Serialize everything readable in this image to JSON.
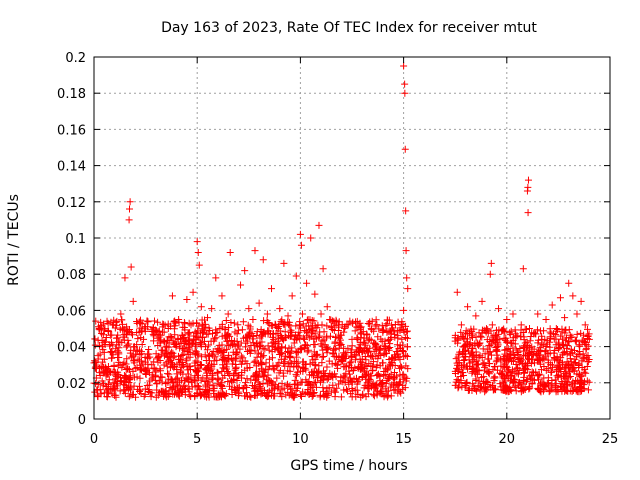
{
  "chart_data": {
    "type": "scatter",
    "title": "Day 163 of 2023, Rate Of TEC Index for receiver mtut",
    "xlabel": "GPS time / hours",
    "ylabel": "ROTI / TECUs",
    "xlim": [
      0,
      25
    ],
    "ylim": [
      0,
      0.2
    ],
    "x_ticks": [
      0,
      5,
      10,
      15,
      20,
      25
    ],
    "y_ticks": [
      0,
      0.02,
      0.04,
      0.06,
      0.08,
      0.1,
      0.12,
      0.14,
      0.16,
      0.18,
      0.2
    ],
    "grid": true,
    "marker": "plus",
    "marker_color": "#ff0000",
    "points": [
      [
        0.0,
        0.031
      ],
      [
        0.1,
        0.028
      ],
      [
        0.2,
        0.035
      ],
      [
        0.3,
        0.024
      ],
      [
        0.4,
        0.04
      ],
      [
        0.5,
        0.033
      ],
      [
        0.6,
        0.045
      ],
      [
        0.7,
        0.029
      ],
      [
        0.8,
        0.037
      ],
      [
        0.9,
        0.052
      ],
      [
        1.0,
        0.026
      ],
      [
        1.1,
        0.041
      ],
      [
        1.2,
        0.034
      ],
      [
        1.3,
        0.058
      ],
      [
        1.4,
        0.03
      ],
      [
        1.5,
        0.078
      ],
      [
        1.6,
        0.022
      ],
      [
        1.7,
        0.11
      ],
      [
        1.72,
        0.116
      ],
      [
        1.75,
        0.12
      ],
      [
        1.8,
        0.084
      ],
      [
        1.9,
        0.065
      ],
      [
        2.0,
        0.028
      ],
      [
        2.1,
        0.038
      ],
      [
        2.2,
        0.018
      ],
      [
        2.3,
        0.032
      ],
      [
        2.4,
        0.044
      ],
      [
        2.5,
        0.025
      ],
      [
        2.6,
        0.036
      ],
      [
        2.7,
        0.021
      ],
      [
        2.8,
        0.03
      ],
      [
        2.9,
        0.046
      ],
      [
        3.0,
        0.027
      ],
      [
        3.1,
        0.034
      ],
      [
        3.2,
        0.042
      ],
      [
        3.3,
        0.023
      ],
      [
        3.4,
        0.048
      ],
      [
        3.5,
        0.031
      ],
      [
        3.6,
        0.05
      ],
      [
        3.7,
        0.036
      ],
      [
        3.8,
        0.068
      ],
      [
        3.9,
        0.029
      ],
      [
        4.0,
        0.041
      ],
      [
        4.1,
        0.055
      ],
      [
        4.2,
        0.033
      ],
      [
        4.3,
        0.046
      ],
      [
        4.4,
        0.038
      ],
      [
        4.5,
        0.066
      ],
      [
        4.6,
        0.042
      ],
      [
        4.7,
        0.052
      ],
      [
        4.8,
        0.07
      ],
      [
        4.9,
        0.044
      ],
      [
        5.0,
        0.098
      ],
      [
        5.05,
        0.092
      ],
      [
        5.1,
        0.085
      ],
      [
        5.2,
        0.062
      ],
      [
        5.3,
        0.048
      ],
      [
        5.4,
        0.04
      ],
      [
        5.5,
        0.056
      ],
      [
        5.6,
        0.035
      ],
      [
        5.7,
        0.061
      ],
      [
        5.8,
        0.043
      ],
      [
        5.9,
        0.078
      ],
      [
        6.0,
        0.039
      ],
      [
        6.1,
        0.05
      ],
      [
        6.2,
        0.068
      ],
      [
        6.3,
        0.034
      ],
      [
        6.4,
        0.046
      ],
      [
        6.5,
        0.058
      ],
      [
        6.6,
        0.092
      ],
      [
        6.7,
        0.041
      ],
      [
        6.8,
        0.053
      ],
      [
        6.9,
        0.037
      ],
      [
        7.0,
        0.049
      ],
      [
        7.1,
        0.074
      ],
      [
        7.2,
        0.032
      ],
      [
        7.3,
        0.082
      ],
      [
        7.4,
        0.045
      ],
      [
        7.5,
        0.061
      ],
      [
        7.6,
        0.038
      ],
      [
        7.7,
        0.055
      ],
      [
        7.8,
        0.093
      ],
      [
        7.9,
        0.042
      ],
      [
        8.0,
        0.064
      ],
      [
        8.1,
        0.036
      ],
      [
        8.2,
        0.088
      ],
      [
        8.3,
        0.047
      ],
      [
        8.4,
        0.058
      ],
      [
        8.5,
        0.033
      ],
      [
        8.6,
        0.072
      ],
      [
        8.7,
        0.044
      ],
      [
        8.8,
        0.052
      ],
      [
        8.9,
        0.039
      ],
      [
        9.0,
        0.061
      ],
      [
        9.1,
        0.036
      ],
      [
        9.2,
        0.086
      ],
      [
        9.3,
        0.045
      ],
      [
        9.4,
        0.057
      ],
      [
        9.5,
        0.031
      ],
      [
        9.6,
        0.068
      ],
      [
        9.7,
        0.042
      ],
      [
        9.8,
        0.079
      ],
      [
        9.9,
        0.037
      ],
      [
        10.0,
        0.102
      ],
      [
        10.05,
        0.096
      ],
      [
        10.1,
        0.058
      ],
      [
        10.2,
        0.044
      ],
      [
        10.3,
        0.075
      ],
      [
        10.4,
        0.038
      ],
      [
        10.5,
        0.1
      ],
      [
        10.6,
        0.049
      ],
      [
        10.7,
        0.069
      ],
      [
        10.8,
        0.035
      ],
      [
        10.9,
        0.107
      ],
      [
        11.0,
        0.058
      ],
      [
        11.1,
        0.083
      ],
      [
        11.2,
        0.041
      ],
      [
        11.3,
        0.062
      ],
      [
        11.4,
        0.032
      ],
      [
        11.5,
        0.051
      ],
      [
        11.6,
        0.038
      ],
      [
        11.7,
        0.045
      ],
      [
        11.8,
        0.028
      ],
      [
        11.9,
        0.042
      ],
      [
        12.0,
        0.034
      ],
      [
        12.1,
        0.048
      ],
      [
        12.2,
        0.025
      ],
      [
        12.3,
        0.039
      ],
      [
        12.4,
        0.031
      ],
      [
        12.5,
        0.044
      ],
      [
        12.6,
        0.022
      ],
      [
        12.7,
        0.037
      ],
      [
        12.8,
        0.028
      ],
      [
        12.9,
        0.041
      ],
      [
        13.0,
        0.033
      ],
      [
        13.1,
        0.026
      ],
      [
        13.2,
        0.038
      ],
      [
        13.3,
        0.021
      ],
      [
        13.4,
        0.035
      ],
      [
        13.5,
        0.029
      ],
      [
        13.6,
        0.042
      ],
      [
        13.7,
        0.024
      ],
      [
        13.8,
        0.036
      ],
      [
        13.9,
        0.019
      ],
      [
        14.0,
        0.031
      ],
      [
        14.1,
        0.043
      ],
      [
        14.2,
        0.027
      ],
      [
        14.3,
        0.038
      ],
      [
        14.4,
        0.045
      ],
      [
        14.5,
        0.023
      ],
      [
        14.6,
        0.034
      ],
      [
        14.7,
        0.041
      ],
      [
        14.8,
        0.028
      ],
      [
        14.9,
        0.052
      ],
      [
        15.0,
        0.195
      ],
      [
        15.05,
        0.185
      ],
      [
        15.06,
        0.18
      ],
      [
        15.08,
        0.149
      ],
      [
        15.1,
        0.115
      ],
      [
        15.12,
        0.093
      ],
      [
        15.15,
        0.078
      ],
      [
        15.2,
        0.072
      ],
      [
        15.0,
        0.06
      ],
      [
        15.1,
        0.045
      ],
      [
        17.5,
        0.043
      ],
      [
        17.6,
        0.07
      ],
      [
        17.7,
        0.031
      ],
      [
        17.8,
        0.052
      ],
      [
        17.9,
        0.024
      ],
      [
        18.0,
        0.038
      ],
      [
        18.1,
        0.062
      ],
      [
        18.2,
        0.029
      ],
      [
        18.3,
        0.046
      ],
      [
        18.4,
        0.035
      ],
      [
        18.5,
        0.057
      ],
      [
        18.6,
        0.027
      ],
      [
        18.7,
        0.042
      ],
      [
        18.8,
        0.065
      ],
      [
        18.9,
        0.031
      ],
      [
        19.0,
        0.048
      ],
      [
        19.1,
        0.036
      ],
      [
        19.2,
        0.08
      ],
      [
        19.25,
        0.086
      ],
      [
        19.3,
        0.052
      ],
      [
        19.4,
        0.029
      ],
      [
        19.5,
        0.044
      ],
      [
        19.6,
        0.061
      ],
      [
        19.7,
        0.033
      ],
      [
        19.8,
        0.049
      ],
      [
        19.9,
        0.038
      ],
      [
        20.0,
        0.055
      ],
      [
        20.1,
        0.027
      ],
      [
        20.2,
        0.042
      ],
      [
        20.3,
        0.058
      ],
      [
        20.4,
        0.034
      ],
      [
        20.5,
        0.046
      ],
      [
        20.6,
        0.031
      ],
      [
        20.7,
        0.052
      ],
      [
        20.8,
        0.083
      ],
      [
        20.9,
        0.028
      ],
      [
        21.0,
        0.126
      ],
      [
        21.02,
        0.128
      ],
      [
        21.05,
        0.132
      ],
      [
        21.03,
        0.114
      ],
      [
        21.1,
        0.05
      ],
      [
        21.2,
        0.033
      ],
      [
        21.3,
        0.047
      ],
      [
        21.4,
        0.026
      ],
      [
        21.5,
        0.058
      ],
      [
        21.6,
        0.038
      ],
      [
        21.7,
        0.044
      ],
      [
        21.8,
        0.029
      ],
      [
        21.9,
        0.055
      ],
      [
        22.0,
        0.036
      ],
      [
        22.1,
        0.048
      ],
      [
        22.2,
        0.063
      ],
      [
        22.3,
        0.034
      ],
      [
        22.4,
        0.05
      ],
      [
        22.5,
        0.042
      ],
      [
        22.6,
        0.067
      ],
      [
        22.7,
        0.031
      ],
      [
        22.8,
        0.056
      ],
      [
        22.9,
        0.039
      ],
      [
        23.0,
        0.075
      ],
      [
        23.1,
        0.045
      ],
      [
        23.2,
        0.068
      ],
      [
        23.3,
        0.033
      ],
      [
        23.4,
        0.058
      ],
      [
        23.5,
        0.041
      ],
      [
        23.6,
        0.065
      ],
      [
        23.7,
        0.036
      ],
      [
        23.8,
        0.052
      ],
      [
        23.9,
        0.029
      ],
      [
        24.0,
        0.044
      ]
    ],
    "band_segments": [
      {
        "x_start": 0.0,
        "x_end": 15.2,
        "y_min": 0.012,
        "y_max": 0.055
      },
      {
        "x_start": 17.5,
        "x_end": 24.0,
        "y_min": 0.015,
        "y_max": 0.05
      }
    ]
  }
}
